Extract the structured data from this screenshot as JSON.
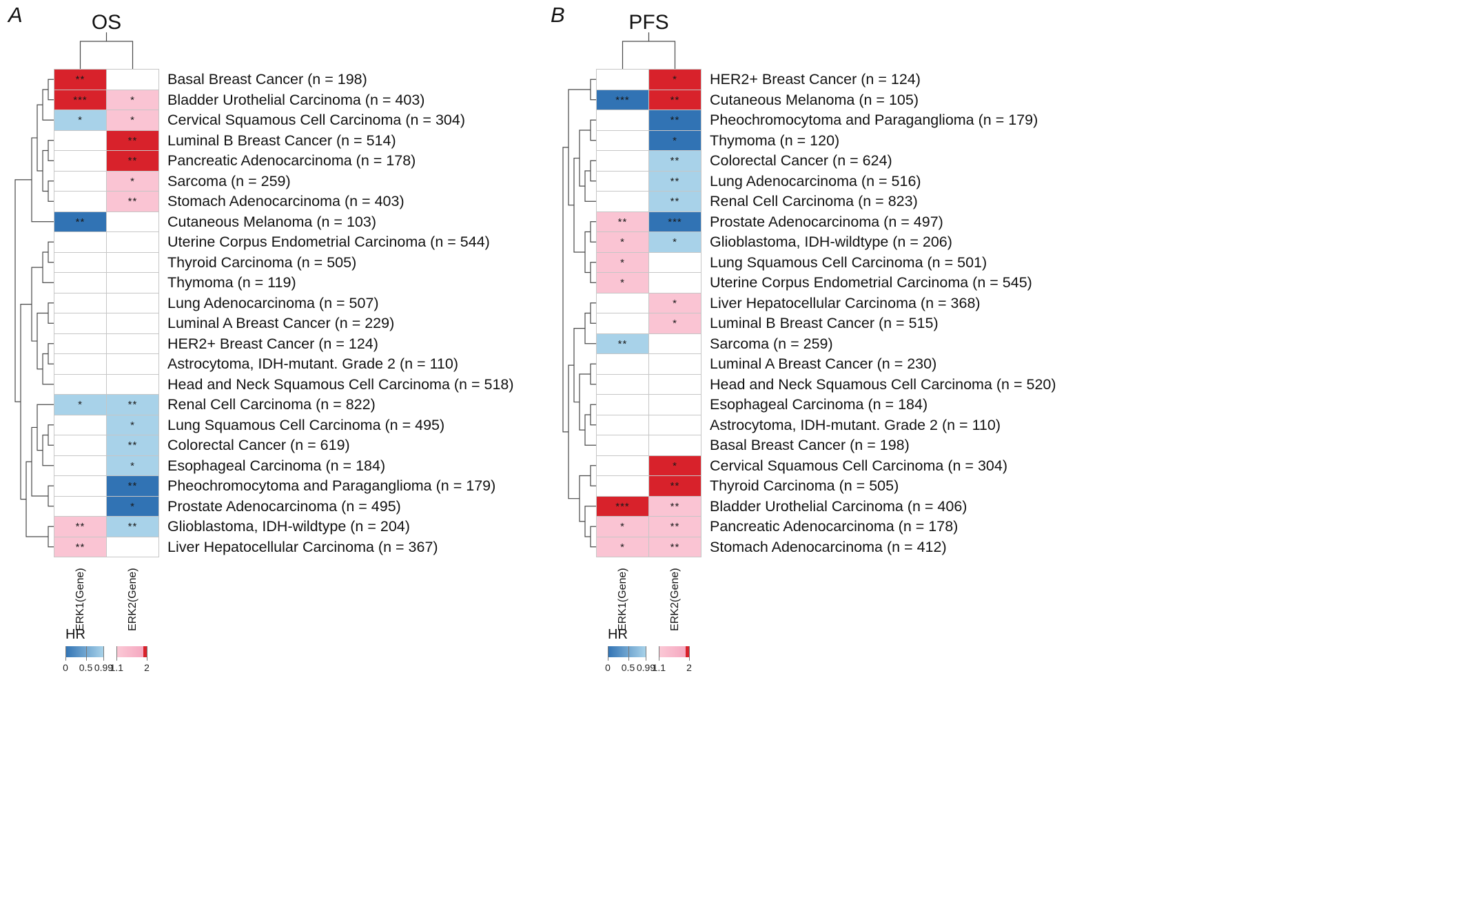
{
  "chart_data": {
    "type": "heatmap",
    "columns": [
      "ERK1(Gene)",
      "ERK2(Gene)"
    ],
    "color_scale": {
      "strong_blue": "#3173b4",
      "light_blue": "#a8d2e9",
      "white": "#ffffff",
      "pink": "#fac4d3",
      "red": "#d8222b"
    },
    "legend": {
      "title": "HR",
      "ticks": [
        {
          "label": "0",
          "pos": 0
        },
        {
          "label": "0.5",
          "pos": 0.25
        },
        {
          "label": "0.99",
          "pos": 0.47
        },
        {
          "label": "1.1",
          "pos": 0.63
        },
        {
          "label": "2",
          "pos": 1
        }
      ],
      "segments": [
        {
          "from": 0,
          "to": 0.47,
          "start": "#3173b4",
          "end": "#a8d2e9"
        },
        {
          "from": 0.63,
          "to": 0.96,
          "start": "#fbc9d6",
          "end": "#f5a8c0"
        },
        {
          "from": 0.96,
          "to": 1,
          "start": "#d8222b",
          "end": "#d8222b"
        }
      ]
    },
    "panels": [
      {
        "letter": "A",
        "title": "OS",
        "rows": [
          {
            "label": "Basal Breast Cancer (n = 198)",
            "cells": [
              {
                "hr": "red",
                "sig": "**"
              },
              {
                "hr": "white",
                "sig": ""
              }
            ]
          },
          {
            "label": "Bladder Urothelial Carcinoma (n = 403)",
            "cells": [
              {
                "hr": "red",
                "sig": "***"
              },
              {
                "hr": "pink",
                "sig": "*"
              }
            ]
          },
          {
            "label": "Cervical Squamous Cell Carcinoma (n = 304)",
            "cells": [
              {
                "hr": "light_blue",
                "sig": "*"
              },
              {
                "hr": "pink",
                "sig": "*"
              }
            ]
          },
          {
            "label": "Luminal B Breast Cancer (n = 514)",
            "cells": [
              {
                "hr": "white",
                "sig": ""
              },
              {
                "hr": "red",
                "sig": "**"
              }
            ]
          },
          {
            "label": "Pancreatic Adenocarcinoma (n = 178)",
            "cells": [
              {
                "hr": "white",
                "sig": ""
              },
              {
                "hr": "red",
                "sig": "**"
              }
            ]
          },
          {
            "label": "Sarcoma (n = 259)",
            "cells": [
              {
                "hr": "white",
                "sig": ""
              },
              {
                "hr": "pink",
                "sig": "*"
              }
            ]
          },
          {
            "label": "Stomach Adenocarcinoma (n = 403)",
            "cells": [
              {
                "hr": "white",
                "sig": ""
              },
              {
                "hr": "pink",
                "sig": "**"
              }
            ]
          },
          {
            "label": "Cutaneous Melanoma (n = 103)",
            "cells": [
              {
                "hr": "strong_blue",
                "sig": "**"
              },
              {
                "hr": "white",
                "sig": ""
              }
            ]
          },
          {
            "label": "Uterine Corpus Endometrial Carcinoma (n = 544)",
            "cells": [
              {
                "hr": "white",
                "sig": ""
              },
              {
                "hr": "white",
                "sig": ""
              }
            ]
          },
          {
            "label": "Thyroid Carcinoma (n = 505)",
            "cells": [
              {
                "hr": "white",
                "sig": ""
              },
              {
                "hr": "white",
                "sig": ""
              }
            ]
          },
          {
            "label": "Thymoma (n = 119)",
            "cells": [
              {
                "hr": "white",
                "sig": ""
              },
              {
                "hr": "white",
                "sig": ""
              }
            ]
          },
          {
            "label": "Lung Adenocarcinoma (n = 507)",
            "cells": [
              {
                "hr": "white",
                "sig": ""
              },
              {
                "hr": "white",
                "sig": ""
              }
            ]
          },
          {
            "label": "Luminal A Breast Cancer (n = 229)",
            "cells": [
              {
                "hr": "white",
                "sig": ""
              },
              {
                "hr": "white",
                "sig": ""
              }
            ]
          },
          {
            "label": "HER2+ Breast Cancer (n = 124)",
            "cells": [
              {
                "hr": "white",
                "sig": ""
              },
              {
                "hr": "white",
                "sig": ""
              }
            ]
          },
          {
            "label": "Astrocytoma, IDH-mutant. Grade 2 (n = 110)",
            "cells": [
              {
                "hr": "white",
                "sig": ""
              },
              {
                "hr": "white",
                "sig": ""
              }
            ]
          },
          {
            "label": "Head and Neck Squamous Cell Carcinoma (n = 518)",
            "cells": [
              {
                "hr": "white",
                "sig": ""
              },
              {
                "hr": "white",
                "sig": ""
              }
            ]
          },
          {
            "label": "Renal Cell Carcinoma (n = 822)",
            "cells": [
              {
                "hr": "light_blue",
                "sig": "*"
              },
              {
                "hr": "light_blue",
                "sig": "**"
              }
            ]
          },
          {
            "label": "Lung Squamous Cell Carcinoma (n = 495)",
            "cells": [
              {
                "hr": "white",
                "sig": ""
              },
              {
                "hr": "light_blue",
                "sig": "*"
              }
            ]
          },
          {
            "label": "Colorectal Cancer (n = 619)",
            "cells": [
              {
                "hr": "white",
                "sig": ""
              },
              {
                "hr": "light_blue",
                "sig": "**"
              }
            ]
          },
          {
            "label": "Esophageal Carcinoma (n = 184)",
            "cells": [
              {
                "hr": "white",
                "sig": ""
              },
              {
                "hr": "light_blue",
                "sig": "*"
              }
            ]
          },
          {
            "label": "Pheochromocytoma and Paraganglioma (n = 179)",
            "cells": [
              {
                "hr": "white",
                "sig": ""
              },
              {
                "hr": "strong_blue",
                "sig": "**"
              }
            ]
          },
          {
            "label": "Prostate Adenocarcinoma (n = 495)",
            "cells": [
              {
                "hr": "white",
                "sig": ""
              },
              {
                "hr": "strong_blue",
                "sig": "*"
              }
            ]
          },
          {
            "label": "Glioblastoma, IDH-wildtype (n = 204)",
            "cells": [
              {
                "hr": "pink",
                "sig": "**"
              },
              {
                "hr": "light_blue",
                "sig": "**"
              }
            ]
          },
          {
            "label": "Liver Hepatocellular Carcinoma (n = 367)",
            "cells": [
              {
                "hr": "pink",
                "sig": "**"
              },
              {
                "hr": "white",
                "sig": ""
              }
            ]
          }
        ],
        "row_dendrogram": [
          [
            [
              [
                [
                  0,
                  1
                ],
                2
              ],
              [
                [
                  3,
                  4
                ],
                [
                  5,
                  6
                ]
              ]
            ],
            7
          ],
          [
            [
              [
                [
                  8,
                  9
                ],
                10
              ],
              [
                [
                  11,
                  12
                ],
                [
                  [
                    13,
                    14
                  ],
                  15
                ]
              ]
            ],
            [
              [
                [
                  16,
                  [
                    [
                      17,
                      18
                    ],
                    19
                  ]
                ],
                [
                  20,
                  21
                ]
              ],
              [
                22,
                23
              ]
            ]
          ]
        ]
      },
      {
        "letter": "B",
        "title": "PFS",
        "rows": [
          {
            "label": "HER2+ Breast Cancer (n = 124)",
            "cells": [
              {
                "hr": "white",
                "sig": ""
              },
              {
                "hr": "red",
                "sig": "*"
              }
            ]
          },
          {
            "label": "Cutaneous Melanoma (n = 105)",
            "cells": [
              {
                "hr": "strong_blue",
                "sig": "***"
              },
              {
                "hr": "red",
                "sig": "**"
              }
            ]
          },
          {
            "label": "Pheochromocytoma and Paraganglioma (n = 179)",
            "cells": [
              {
                "hr": "white",
                "sig": ""
              },
              {
                "hr": "strong_blue",
                "sig": "**"
              }
            ]
          },
          {
            "label": "Thymoma (n = 120)",
            "cells": [
              {
                "hr": "white",
                "sig": ""
              },
              {
                "hr": "strong_blue",
                "sig": "*"
              }
            ]
          },
          {
            "label": "Colorectal Cancer (n = 624)",
            "cells": [
              {
                "hr": "white",
                "sig": ""
              },
              {
                "hr": "light_blue",
                "sig": "**"
              }
            ]
          },
          {
            "label": "Lung Adenocarcinoma (n = 516)",
            "cells": [
              {
                "hr": "white",
                "sig": ""
              },
              {
                "hr": "light_blue",
                "sig": "**"
              }
            ]
          },
          {
            "label": "Renal Cell Carcinoma (n = 823)",
            "cells": [
              {
                "hr": "white",
                "sig": ""
              },
              {
                "hr": "light_blue",
                "sig": "**"
              }
            ]
          },
          {
            "label": "Prostate Adenocarcinoma (n = 497)",
            "cells": [
              {
                "hr": "pink",
                "sig": "**"
              },
              {
                "hr": "strong_blue",
                "sig": "***"
              }
            ]
          },
          {
            "label": "Glioblastoma, IDH-wildtype (n = 206)",
            "cells": [
              {
                "hr": "pink",
                "sig": "*"
              },
              {
                "hr": "light_blue",
                "sig": "*"
              }
            ]
          },
          {
            "label": "Lung Squamous Cell Carcinoma (n = 501)",
            "cells": [
              {
                "hr": "pink",
                "sig": "*"
              },
              {
                "hr": "white",
                "sig": ""
              }
            ]
          },
          {
            "label": "Uterine Corpus Endometrial Carcinoma (n = 545)",
            "cells": [
              {
                "hr": "pink",
                "sig": "*"
              },
              {
                "hr": "white",
                "sig": ""
              }
            ]
          },
          {
            "label": "Liver Hepatocellular Carcinoma (n = 368)",
            "cells": [
              {
                "hr": "white",
                "sig": ""
              },
              {
                "hr": "pink",
                "sig": "*"
              }
            ]
          },
          {
            "label": "Luminal B Breast Cancer (n = 515)",
            "cells": [
              {
                "hr": "white",
                "sig": ""
              },
              {
                "hr": "pink",
                "sig": "*"
              }
            ]
          },
          {
            "label": "Sarcoma (n = 259)",
            "cells": [
              {
                "hr": "light_blue",
                "sig": "**"
              },
              {
                "hr": "white",
                "sig": ""
              }
            ]
          },
          {
            "label": "Luminal A Breast Cancer (n = 230)",
            "cells": [
              {
                "hr": "white",
                "sig": ""
              },
              {
                "hr": "white",
                "sig": ""
              }
            ]
          },
          {
            "label": "Head and Neck Squamous Cell Carcinoma (n = 520)",
            "cells": [
              {
                "hr": "white",
                "sig": ""
              },
              {
                "hr": "white",
                "sig": ""
              }
            ]
          },
          {
            "label": "Esophageal Carcinoma (n = 184)",
            "cells": [
              {
                "hr": "white",
                "sig": ""
              },
              {
                "hr": "white",
                "sig": ""
              }
            ]
          },
          {
            "label": "Astrocytoma, IDH-mutant. Grade 2 (n = 110)",
            "cells": [
              {
                "hr": "white",
                "sig": ""
              },
              {
                "hr": "white",
                "sig": ""
              }
            ]
          },
          {
            "label": "Basal Breast Cancer (n = 198)",
            "cells": [
              {
                "hr": "white",
                "sig": ""
              },
              {
                "hr": "white",
                "sig": ""
              }
            ]
          },
          {
            "label": "Cervical Squamous Cell Carcinoma (n = 304)",
            "cells": [
              {
                "hr": "white",
                "sig": ""
              },
              {
                "hr": "red",
                "sig": "*"
              }
            ]
          },
          {
            "label": "Thyroid Carcinoma (n = 505)",
            "cells": [
              {
                "hr": "white",
                "sig": ""
              },
              {
                "hr": "red",
                "sig": "**"
              }
            ]
          },
          {
            "label": "Bladder Urothelial Carcinoma (n = 406)",
            "cells": [
              {
                "hr": "red",
                "sig": "***"
              },
              {
                "hr": "pink",
                "sig": "**"
              }
            ]
          },
          {
            "label": "Pancreatic Adenocarcinoma (n = 178)",
            "cells": [
              {
                "hr": "pink",
                "sig": "*"
              },
              {
                "hr": "pink",
                "sig": "**"
              }
            ]
          },
          {
            "label": "Stomach Adenocarcinoma (n = 412)",
            "cells": [
              {
                "hr": "pink",
                "sig": "*"
              },
              {
                "hr": "pink",
                "sig": "**"
              }
            ]
          }
        ],
        "row_dendrogram": [
          [
            [
              0,
              1
            ],
            [
              [
                [
                  2,
                  3
                ],
                [
                  [
                    4,
                    5
                  ],
                  6
                ]
              ],
              [
                [
                  7,
                  8
                ],
                [
                  9,
                  10
                ]
              ]
            ]
          ],
          [
            [
              [
                [
                  11,
                  12
                ],
                13
              ],
              [
                [
                  14,
                  15
                ],
                [
                  [
                    16,
                    17
                  ],
                  18
                ]
              ]
            ],
            [
              [
                19,
                20
              ],
              [
                21,
                [
                  22,
                  23
                ]
              ]
            ]
          ]
        ]
      }
    ]
  }
}
